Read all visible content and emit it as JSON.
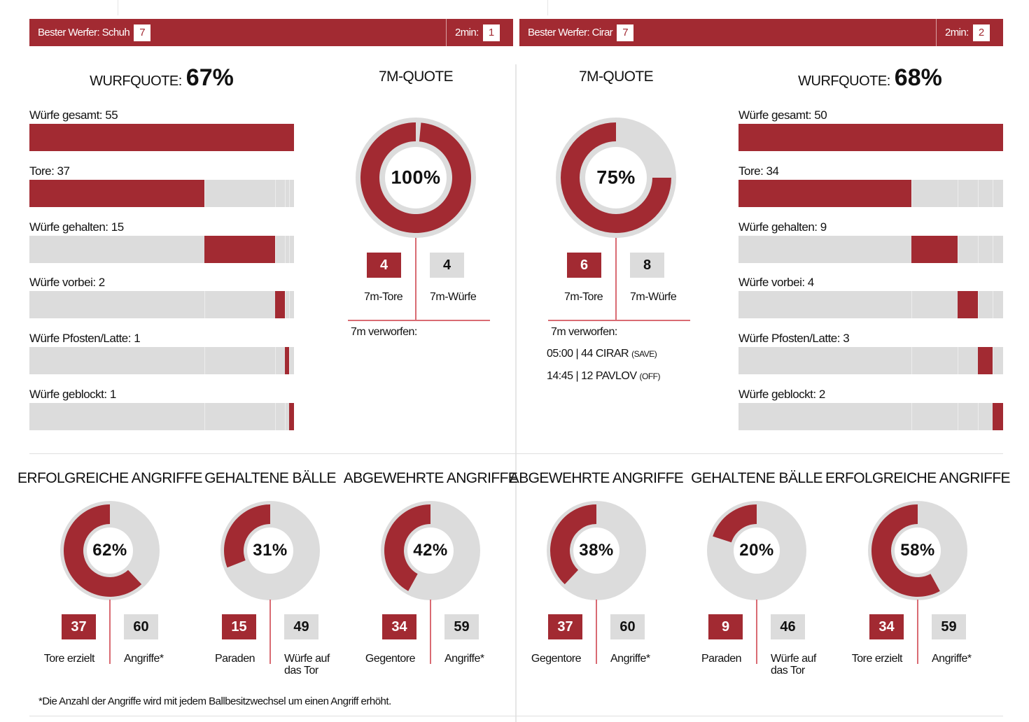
{
  "colors": {
    "accent": "#a22a32",
    "grey": "#dcdcdc",
    "line": "#d96b73"
  },
  "teams": [
    {
      "best_label": "Bester Werfer: Schuh",
      "best_count": "7",
      "twomin_label": "2min:",
      "twomin": "1",
      "wurfquote_label": "WURFQUOTE:",
      "wurfquote": "67%",
      "bars": [
        {
          "label": "Würfe gesamt: 55",
          "value": 55,
          "total": true
        },
        {
          "label": "Tore: 37",
          "value": 37
        },
        {
          "label": "Würfe gehalten: 15",
          "value": 15
        },
        {
          "label": "Würfe vorbei: 2",
          "value": 2
        },
        {
          "label": "Würfe Pfosten/Latte: 1",
          "value": 1
        },
        {
          "label": "Würfe geblockt: 1",
          "value": 1
        }
      ],
      "seven": {
        "title": "7M-QUOTE",
        "pct": "100%",
        "fraction": 1.0,
        "tore": "4",
        "wuerfe": "4",
        "tore_label": "7m-Tore",
        "wuerfe_label": "7m-Würfe",
        "verworfen_label": "7m verworfen:",
        "verworfen": []
      },
      "donuts": [
        {
          "title": "ERFOLGREICHE ANGRIFFE",
          "pct": "62%",
          "fraction": 0.62,
          "a": "37",
          "a_label": "Tore erzielt",
          "b": "60",
          "b_label": "Angriffe*"
        },
        {
          "title": "GEHALTENE BÄLLE",
          "pct": "31%",
          "fraction": 0.31,
          "a": "15",
          "a_label": "Paraden",
          "b": "49",
          "b_label": "Würfe auf das Tor"
        },
        {
          "title": "ABGEWEHRTE ANGRIFFE",
          "pct": "42%",
          "fraction": 0.42,
          "a": "34",
          "a_label": "Gegentore",
          "b": "59",
          "b_label": "Angriffe*"
        }
      ]
    },
    {
      "best_label": "Bester Werfer: Cirar",
      "best_count": "7",
      "twomin_label": "2min:",
      "twomin": "2",
      "wurfquote_label": "WURFQUOTE:",
      "wurfquote": "68%",
      "bars": [
        {
          "label": "Würfe gesamt: 50",
          "value": 50,
          "total": true
        },
        {
          "label": "Tore: 34",
          "value": 34
        },
        {
          "label": "Würfe gehalten: 9",
          "value": 9
        },
        {
          "label": "Würfe vorbei: 4",
          "value": 4
        },
        {
          "label": "Würfe Pfosten/Latte: 3",
          "value": 3
        },
        {
          "label": "Würfe geblockt: 2",
          "value": 2
        }
      ],
      "seven": {
        "title": "7M-QUOTE",
        "pct": "75%",
        "fraction": 0.75,
        "tore": "6",
        "wuerfe": "8",
        "tore_label": "7m-Tore",
        "wuerfe_label": "7m-Würfe",
        "verworfen_label": "7m verworfen:",
        "verworfen": [
          {
            "text": "05:00 | 44 CIRAR",
            "tag": "(SAVE)"
          },
          {
            "text": "14:45 | 12 PAVLOV",
            "tag": "(OFF)"
          }
        ]
      },
      "donuts": [
        {
          "title": "ABGEWEHRTE ANGRIFFE",
          "pct": "38%",
          "fraction": 0.38,
          "a": "37",
          "a_label": "Gegentore",
          "b": "60",
          "b_label": "Angriffe*"
        },
        {
          "title": "GEHALTENE BÄLLE",
          "pct": "20%",
          "fraction": 0.2,
          "a": "9",
          "a_label": "Paraden",
          "b": "46",
          "b_label": "Würfe auf das Tor"
        },
        {
          "title": "ERFOLGREICHE ANGRIFFE",
          "pct": "58%",
          "fraction": 0.58,
          "a": "34",
          "a_label": "Tore erzielt",
          "b": "59",
          "b_label": "Angriffe*"
        }
      ]
    }
  ],
  "footnote": "*Die Anzahl der Angriffe wird mit jedem Ballbesitzwechsel um einen Angriff erhöht."
}
